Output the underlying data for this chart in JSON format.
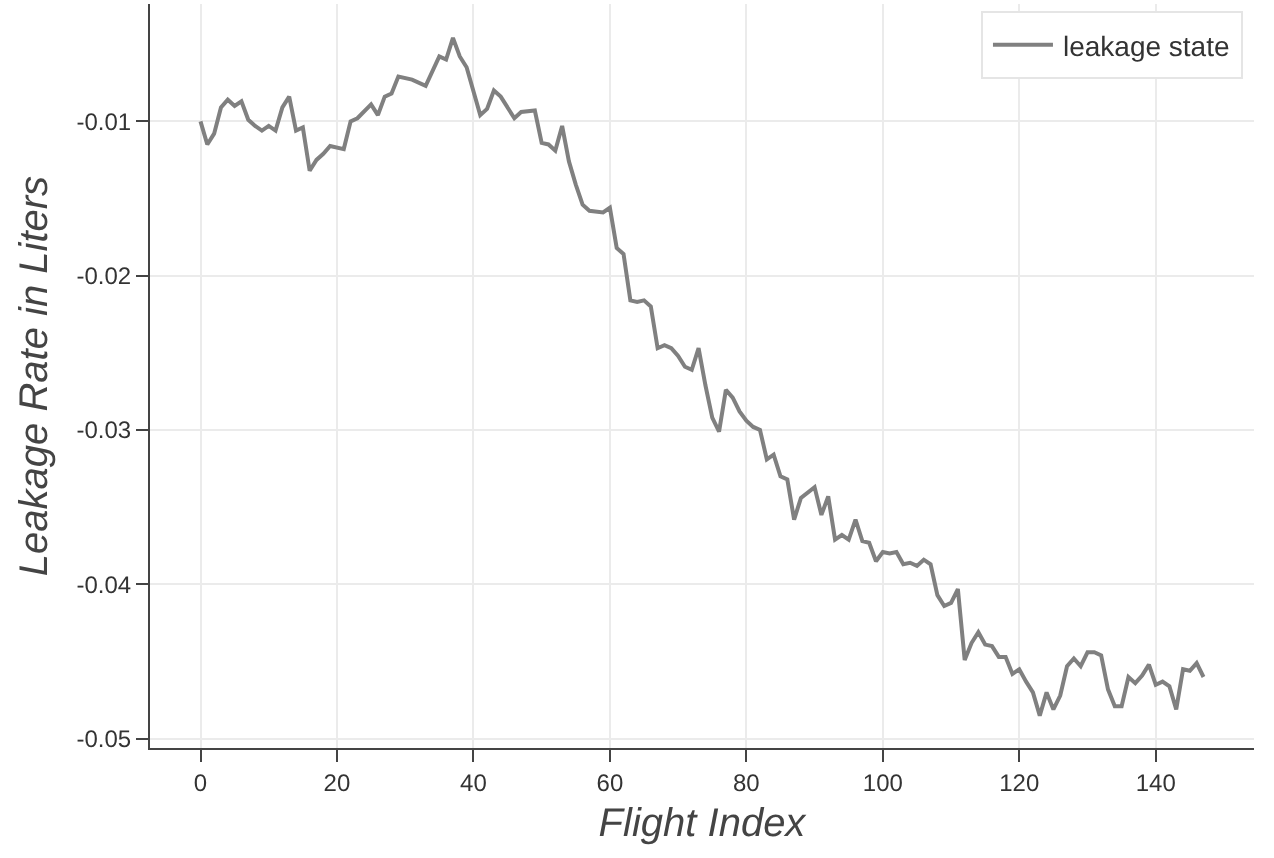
{
  "chart_data": {
    "type": "line",
    "xlabel": "Flight Index",
    "ylabel": "Leakage Rate in Liters",
    "xlim": [
      -7.4,
      154.4
    ],
    "ylim": [
      -0.0506,
      -0.0024
    ],
    "xticks": [
      0,
      20,
      40,
      60,
      80,
      100,
      120,
      140
    ],
    "yticks": [
      -0.05,
      -0.04,
      -0.03,
      -0.02,
      -0.01
    ],
    "grid": true,
    "legend": "top right",
    "marker": "none",
    "line_style": "solid",
    "series": [
      {
        "name": "leakage state",
        "color": "#808080",
        "x": [
          0,
          1,
          2,
          3,
          4,
          5,
          6,
          7,
          8,
          9,
          10,
          11,
          12,
          13,
          14,
          15,
          16,
          17,
          18,
          19,
          21,
          22,
          23,
          25,
          26,
          27,
          28,
          29,
          31,
          33,
          35,
          36,
          37,
          38,
          39,
          41,
          42,
          43,
          44,
          46,
          47,
          49,
          50,
          51,
          52,
          53,
          54,
          55,
          56,
          57,
          59,
          60,
          61,
          62,
          63,
          64,
          65,
          66,
          67,
          68,
          69,
          70,
          71,
          72,
          73,
          74,
          75,
          76,
          77,
          78,
          79,
          80,
          81,
          82,
          83,
          84,
          85,
          86,
          87,
          88,
          90,
          91,
          92,
          93,
          94,
          95,
          96,
          97,
          98,
          99,
          100,
          101,
          102,
          103,
          104,
          105,
          106,
          107,
          108,
          109,
          110,
          111,
          112,
          113,
          114,
          115,
          116,
          117,
          118,
          119,
          120,
          121,
          122,
          123,
          124,
          125,
          126,
          127,
          128,
          129,
          130,
          131,
          132,
          133,
          134,
          135,
          136,
          137,
          138,
          139,
          140,
          141,
          142,
          143,
          144,
          145,
          146,
          147
        ],
        "values": [
          -0.01,
          -0.0115,
          -0.0108,
          -0.0091,
          -0.0086,
          -0.009,
          -0.0087,
          -0.0099,
          -0.0103,
          -0.0106,
          -0.0103,
          -0.0106,
          -0.0091,
          -0.0084,
          -0.0106,
          -0.0104,
          -0.0132,
          -0.0125,
          -0.0121,
          -0.0116,
          -0.0118,
          -0.01,
          -0.0098,
          -0.0089,
          -0.0096,
          -0.0084,
          -0.0082,
          -0.0071,
          -0.0073,
          -0.0077,
          -0.0058,
          -0.006,
          -0.0046,
          -0.0058,
          -0.0065,
          -0.0096,
          -0.0092,
          -0.008,
          -0.0084,
          -0.0098,
          -0.0094,
          -0.0093,
          -0.0114,
          -0.0115,
          -0.0119,
          -0.0103,
          -0.0126,
          -0.0141,
          -0.0154,
          -0.0158,
          -0.0159,
          -0.0156,
          -0.0182,
          -0.0186,
          -0.0216,
          -0.0217,
          -0.0216,
          -0.022,
          -0.0247,
          -0.0245,
          -0.0247,
          -0.0252,
          -0.0259,
          -0.0261,
          -0.0247,
          -0.0271,
          -0.0292,
          -0.0301,
          -0.0274,
          -0.0279,
          -0.0288,
          -0.0294,
          -0.0298,
          -0.03,
          -0.0319,
          -0.0316,
          -0.033,
          -0.0332,
          -0.0358,
          -0.0344,
          -0.0337,
          -0.0355,
          -0.0343,
          -0.0371,
          -0.0368,
          -0.0371,
          -0.0358,
          -0.0372,
          -0.0373,
          -0.0385,
          -0.0379,
          -0.038,
          -0.0379,
          -0.0387,
          -0.0386,
          -0.0388,
          -0.0384,
          -0.0387,
          -0.0407,
          -0.0414,
          -0.0412,
          -0.0403,
          -0.0449,
          -0.0438,
          -0.0431,
          -0.0439,
          -0.044,
          -0.0447,
          -0.0447,
          -0.0458,
          -0.0455,
          -0.0463,
          -0.047,
          -0.0485,
          -0.047,
          -0.0481,
          -0.0472,
          -0.0453,
          -0.0448,
          -0.0453,
          -0.0444,
          -0.0444,
          -0.0446,
          -0.0468,
          -0.0479,
          -0.0479,
          -0.046,
          -0.0464,
          -0.0459,
          -0.0452,
          -0.0465,
          -0.0463,
          -0.0466,
          -0.0481,
          -0.0455,
          -0.0456,
          -0.0451,
          -0.046
        ]
      }
    ]
  }
}
